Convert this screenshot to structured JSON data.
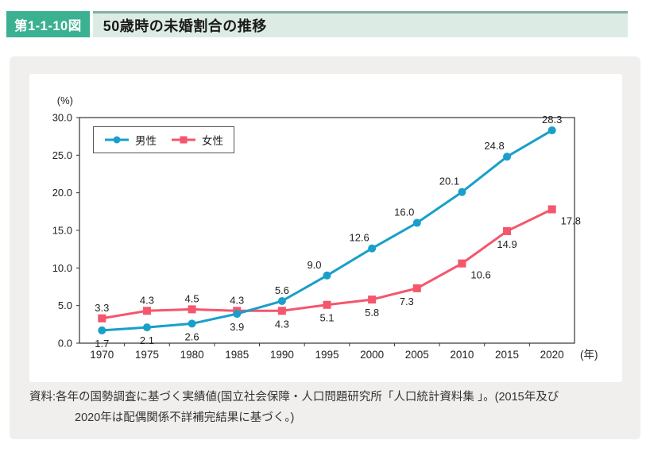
{
  "header": {
    "figure_badge": "第1-1-10図",
    "title": "50歳時の未婚割合の推移"
  },
  "footer": {
    "source_line1": "資料:各年の国勢調査に基づく実績値(国立社会保障・人口問題研究所「人口統計資料集 」。(2015年及び",
    "source_line2": "2020年は配偶関係不詳補完結果に基づく。)"
  },
  "colors": {
    "badge_green": "#3cb192",
    "title_bar_mint": "#dcece4",
    "title_bar_top_line": "#84b0a0",
    "panel_gray": "#f0efed",
    "male_blue": "#199fca",
    "female_pink": "#f4566c",
    "axis_dark": "#333333",
    "text_dark": "#222222"
  },
  "chart_data": {
    "type": "line",
    "title": "50歳時の未婚割合の推移",
    "xlabel_unit": "(年)",
    "ylabel_unit": "(%)",
    "categories": [
      "1970",
      "1975",
      "1980",
      "1985",
      "1990",
      "1995",
      "2000",
      "2005",
      "2010",
      "2015",
      "2020"
    ],
    "ylim": [
      0,
      30
    ],
    "ytick_step": 5,
    "grid": false,
    "legend_position": "top-left",
    "series": [
      {
        "id": "male",
        "name": "男性",
        "color": "#199fca",
        "marker": "circle",
        "values": [
          1.7,
          2.1,
          2.6,
          3.9,
          5.6,
          9.0,
          12.6,
          16.0,
          20.1,
          24.8,
          28.3
        ],
        "label_positions": [
          "below",
          "below",
          "below",
          "below",
          "above",
          "above-left",
          "above-left",
          "above-left",
          "above-left",
          "above-left",
          "above"
        ]
      },
      {
        "id": "female",
        "name": "女性",
        "color": "#f4566c",
        "marker": "square",
        "values": [
          3.3,
          4.3,
          4.5,
          4.3,
          4.3,
          5.1,
          5.8,
          7.3,
          10.6,
          14.9,
          17.8
        ],
        "label_positions": [
          "above",
          "above",
          "above",
          "above",
          "below",
          "below",
          "below",
          "below-left",
          "below-right",
          "below",
          "below-right"
        ]
      }
    ]
  }
}
